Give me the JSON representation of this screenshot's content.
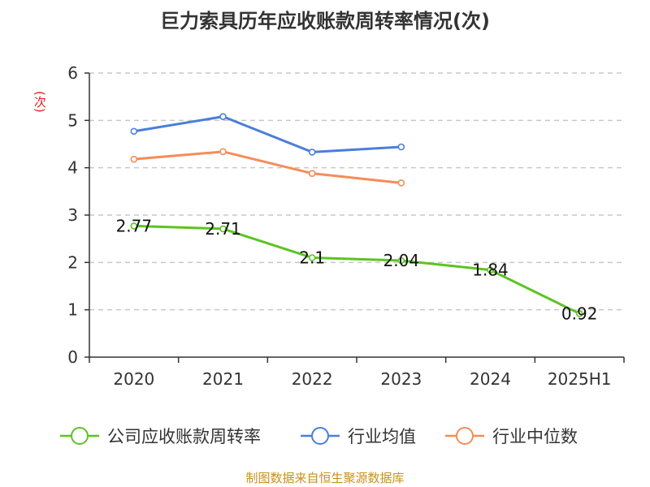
{
  "chart_data": {
    "type": "line",
    "title": "巨力索具历年应收账款周转率情况(次)",
    "ylabel": "(次)",
    "categories": [
      "2020",
      "2021",
      "2022",
      "2023",
      "2024",
      "2025H1"
    ],
    "ylim": [
      0,
      6
    ],
    "yticks": [
      "0",
      "1",
      "2",
      "3",
      "4",
      "5",
      "6"
    ],
    "grid": true,
    "legend_position": "bottom",
    "series": [
      {
        "name": "公司应收账款周转率",
        "color": "#5cc422",
        "values": [
          2.77,
          2.71,
          2.1,
          2.04,
          1.84,
          0.92
        ],
        "labels": [
          "2.77",
          "2.71",
          "2.1",
          "2.04",
          "1.84",
          "0.92"
        ]
      },
      {
        "name": "行业均值",
        "color": "#4a7fdb",
        "values": [
          4.77,
          5.08,
          4.33,
          4.44,
          null,
          null
        ]
      },
      {
        "name": "行业中位数",
        "color": "#f58c57",
        "values": [
          4.18,
          4.34,
          3.88,
          3.68,
          null,
          null
        ]
      }
    ]
  },
  "source": "制图数据来自恒生聚源数据库"
}
